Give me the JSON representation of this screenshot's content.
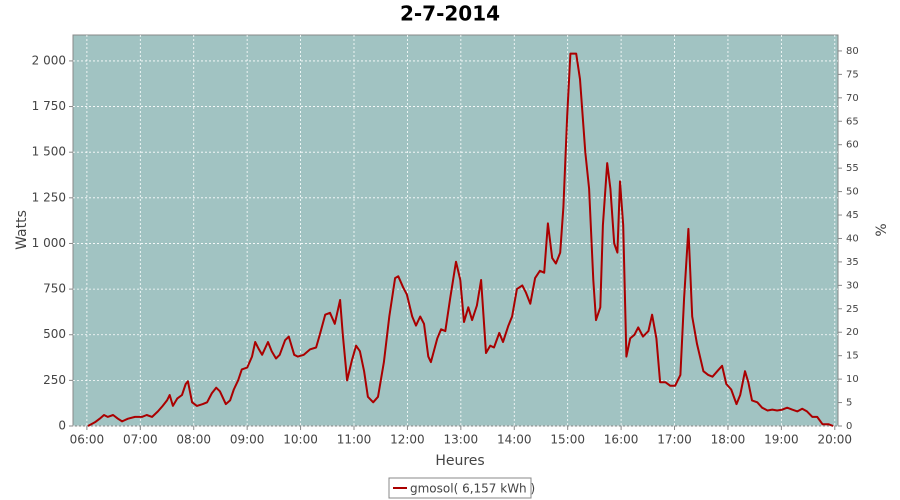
{
  "chart_data": {
    "type": "line",
    "title": "2-7-2014",
    "x_label": "Heures",
    "y_label": "Watts",
    "y2_label": "%",
    "grid": true,
    "legend": "bottom",
    "xlim": [
      5.74,
      20.06
    ],
    "xticks": [
      {
        "value": 6,
        "label": "06:00"
      },
      {
        "value": 7,
        "label": "07:00"
      },
      {
        "value": 8,
        "label": "08:00"
      },
      {
        "value": 9,
        "label": "09:00"
      },
      {
        "value": 10,
        "label": "10:00"
      },
      {
        "value": 11,
        "label": "11:00"
      },
      {
        "value": 12,
        "label": "12:00"
      },
      {
        "value": 13,
        "label": "13:00"
      },
      {
        "value": 14,
        "label": "14:00"
      },
      {
        "value": 15,
        "label": "15:00"
      },
      {
        "value": 16,
        "label": "16:00"
      },
      {
        "value": 17,
        "label": "17:00"
      },
      {
        "value": 18,
        "label": "18:00"
      },
      {
        "value": 19,
        "label": "19:00"
      },
      {
        "value": 20,
        "label": "20:00"
      }
    ],
    "ylim": [
      0,
      2142
    ],
    "yticks": [
      0,
      250,
      500,
      750,
      {
        "value": 1000,
        "label": "1 000"
      },
      {
        "value": 1250,
        "label": "1 250"
      },
      {
        "value": 1500,
        "label": "1 500"
      },
      {
        "value": 1750,
        "label": "1 750"
      },
      {
        "value": 2000,
        "label": "2 000"
      }
    ],
    "y2lim": [
      0,
      83.4
    ],
    "y2ticks": [
      0,
      5,
      10,
      15,
      20,
      25,
      30,
      35,
      40,
      45,
      50,
      55,
      60,
      65,
      70,
      75,
      80
    ],
    "x": [
      6.02,
      6.15,
      6.24,
      6.32,
      6.39,
      6.49,
      6.58,
      6.66,
      6.77,
      6.9,
      7.03,
      7.12,
      7.22,
      7.33,
      7.42,
      7.5,
      7.55,
      7.61,
      7.69,
      7.78,
      7.85,
      7.89,
      7.97,
      8.06,
      8.17,
      8.25,
      8.34,
      8.42,
      8.49,
      8.6,
      8.68,
      8.75,
      8.83,
      8.9,
      9.0,
      9.09,
      9.15,
      9.22,
      9.28,
      9.39,
      9.46,
      9.54,
      9.61,
      9.71,
      9.78,
      9.88,
      9.95,
      10.06,
      10.18,
      10.29,
      10.36,
      10.46,
      10.55,
      10.64,
      10.74,
      10.79,
      10.87,
      10.96,
      11.04,
      11.11,
      11.19,
      11.26,
      11.36,
      11.45,
      11.56,
      11.66,
      11.77,
      11.83,
      11.92,
      11.99,
      12.09,
      12.16,
      12.24,
      12.31,
      12.39,
      12.44,
      12.56,
      12.63,
      12.71,
      12.8,
      12.91,
      12.99,
      13.06,
      13.14,
      13.21,
      13.3,
      13.38,
      13.47,
      13.55,
      13.62,
      13.72,
      13.79,
      13.89,
      13.96,
      14.05,
      14.15,
      14.22,
      14.3,
      14.39,
      14.48,
      14.56,
      14.63,
      14.71,
      14.78,
      14.86,
      14.92,
      14.99,
      15.05,
      15.16,
      15.23,
      15.33,
      15.4,
      15.48,
      15.53,
      15.61,
      15.66,
      15.74,
      15.8,
      15.87,
      15.93,
      15.98,
      16.04,
      16.1,
      16.17,
      16.25,
      16.32,
      16.41,
      16.51,
      16.58,
      16.66,
      16.73,
      16.83,
      16.92,
      17.01,
      17.11,
      17.18,
      17.26,
      17.33,
      17.42,
      17.54,
      17.63,
      17.71,
      17.8,
      17.89,
      17.97,
      18.06,
      18.16,
      18.23,
      18.32,
      18.38,
      18.45,
      18.55,
      18.64,
      18.74,
      18.83,
      18.92,
      19.02,
      19.11,
      19.2,
      19.3,
      19.39,
      19.48,
      19.58,
      19.67,
      19.77,
      19.88,
      19.97
    ],
    "series": [
      {
        "name": "gmosol( 6,157 kWh )",
        "color": "#aa0000",
        "values": [
          0,
          20,
          40,
          60,
          50,
          60,
          40,
          25,
          40,
          50,
          50,
          60,
          50,
          80,
          110,
          140,
          170,
          110,
          150,
          170,
          230,
          245,
          130,
          110,
          120,
          130,
          180,
          210,
          190,
          120,
          140,
          200,
          250,
          310,
          320,
          380,
          460,
          420,
          390,
          460,
          410,
          370,
          390,
          470,
          490,
          390,
          380,
          390,
          420,
          430,
          500,
          610,
          620,
          560,
          690,
          500,
          250,
          360,
          440,
          410,
          300,
          160,
          130,
          160,
          350,
          600,
          810,
          820,
          760,
          720,
          600,
          550,
          600,
          560,
          380,
          350,
          480,
          530,
          520,
          700,
          900,
          800,
          570,
          650,
          580,
          660,
          800,
          400,
          440,
          430,
          510,
          460,
          550,
          600,
          750,
          770,
          730,
          670,
          810,
          850,
          840,
          1110,
          920,
          890,
          950,
          1200,
          1700,
          2040,
          2040,
          1900,
          1500,
          1300,
          800,
          580,
          650,
          1100,
          1440,
          1300,
          1000,
          950,
          1340,
          1100,
          380,
          480,
          500,
          540,
          490,
          520,
          610,
          480,
          240,
          240,
          220,
          220,
          280,
          700,
          1080,
          600,
          450,
          300,
          280,
          270,
          300,
          330,
          230,
          200,
          120,
          170,
          300,
          240,
          140,
          130,
          100,
          85,
          90,
          85,
          90,
          100,
          90,
          80,
          95,
          80,
          50,
          50,
          10,
          10,
          0
        ]
      }
    ]
  }
}
